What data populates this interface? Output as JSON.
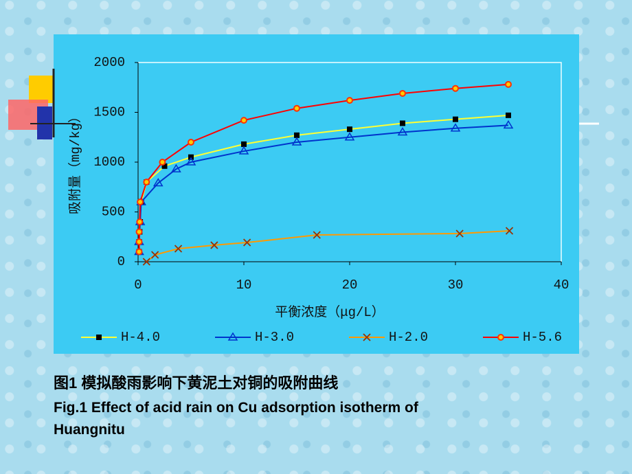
{
  "chart_data": {
    "type": "line",
    "y_label": "吸附量（mg/kg）",
    "x_label": "平衡浓度（μg/L）",
    "xlim": [
      0,
      40
    ],
    "xticks": [
      0,
      10,
      20,
      30,
      40
    ],
    "ylim": [
      0,
      2000
    ],
    "yticks": [
      0,
      500,
      1000,
      1500,
      2000
    ],
    "series": [
      {
        "name": "H-4.0",
        "color": "#ffff33",
        "marker": "square",
        "marker_color": "#000000",
        "x": [
          0.1,
          0.1,
          0.15,
          0.2,
          0.3,
          0.8,
          2.5,
          5,
          10,
          15,
          20,
          25,
          30,
          35
        ],
        "values": [
          100,
          200,
          300,
          400,
          600,
          800,
          960,
          1050,
          1180,
          1270,
          1330,
          1390,
          1430,
          1470
        ]
      },
      {
        "name": "H-3.0",
        "color": "#0033cc",
        "marker": "triangle",
        "marker_color": "#0033cc",
        "x": [
          0.1,
          0.1,
          0.2,
          0.3,
          1.9,
          3.6,
          5,
          10,
          15,
          20,
          25,
          30,
          35
        ],
        "values": [
          100,
          200,
          400,
          600,
          790,
          930,
          1000,
          1110,
          1200,
          1250,
          1300,
          1340,
          1370
        ]
      },
      {
        "name": "H-2.0",
        "color": "#ff9900",
        "marker": "cross",
        "marker_color": "#993300",
        "x": [
          0.8,
          1.6,
          3.8,
          7.2,
          10.3,
          16.9,
          30.4,
          35.1
        ],
        "values": [
          0,
          69,
          131,
          166,
          193,
          269,
          283,
          310
        ]
      },
      {
        "name": "H-5.6",
        "color": "#ff0000",
        "marker": "circle",
        "marker_color": "#ff3300",
        "x": [
          0.1,
          0.1,
          0.1,
          0.15,
          0.2,
          0.8,
          2.3,
          5,
          10,
          15,
          20,
          25,
          30,
          35
        ],
        "values": [
          100,
          200,
          300,
          400,
          600,
          800,
          1000,
          1200,
          1420,
          1540,
          1620,
          1690,
          1740,
          1780
        ]
      }
    ]
  },
  "caption": {
    "chinese": "图1  模拟酸雨影响下黄泥土对铜的吸附曲线",
    "english_line1": "Fig.1 Effect of acid rain on Cu adsorption isotherm of",
    "english_line2": "Huangnitu"
  }
}
